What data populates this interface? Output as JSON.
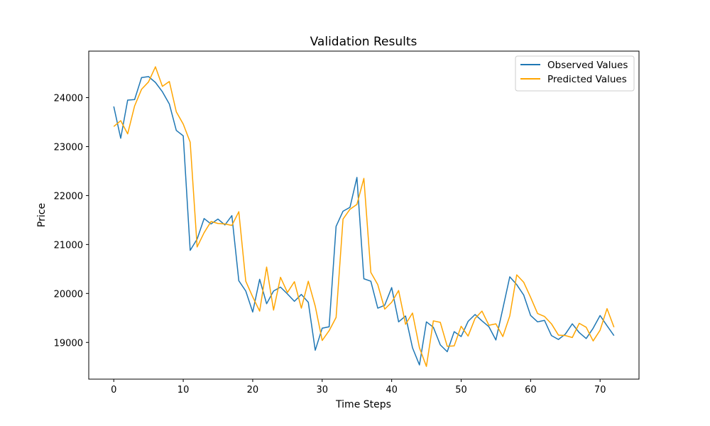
{
  "chart_data": {
    "type": "line",
    "title": "Validation Results",
    "xlabel": "Time Steps",
    "ylabel": "Price",
    "xlim": [
      -3.6,
      75.6
    ],
    "ylim": [
      18250,
      24950
    ],
    "xticks": [
      0,
      10,
      20,
      30,
      40,
      50,
      60,
      70
    ],
    "yticks": [
      19000,
      20000,
      21000,
      22000,
      23000,
      24000
    ],
    "grid": false,
    "legend_position": "top-right",
    "series": [
      {
        "name": "Observed Values",
        "color": "#1f77b4",
        "values": [
          23820,
          23170,
          23950,
          23960,
          24410,
          24430,
          24310,
          24120,
          23870,
          23330,
          23220,
          20880,
          21110,
          21530,
          21420,
          21520,
          21400,
          21590,
          20260,
          20050,
          19620,
          20290,
          19790,
          20050,
          20130,
          19990,
          19840,
          19980,
          19820,
          18840,
          19290,
          19320,
          21370,
          21680,
          21760,
          22370,
          20300,
          20250,
          19700,
          19760,
          20120,
          19420,
          19540,
          18890,
          18540,
          19420,
          19310,
          18950,
          18810,
          19220,
          19120,
          19430,
          19570,
          19440,
          19320,
          19050,
          19690,
          20340,
          20180,
          19970,
          19550,
          19420,
          19450,
          19140,
          19060,
          19170,
          19380,
          19200,
          19080,
          19290,
          19550,
          19340,
          19140
        ]
      },
      {
        "name": "Predicted Values",
        "color": "#ffa500",
        "values": [
          23410,
          23530,
          23260,
          23830,
          24170,
          24320,
          24630,
          24230,
          24330,
          23710,
          23460,
          23090,
          20950,
          21240,
          21470,
          21430,
          21420,
          21390,
          21670,
          20250,
          19930,
          19640,
          20540,
          19660,
          20330,
          20020,
          20240,
          19700,
          20250,
          19740,
          19040,
          19240,
          19510,
          21520,
          21720,
          21820,
          22350,
          20430,
          20180,
          19680,
          19820,
          20060,
          19370,
          19600,
          18890,
          18510,
          19440,
          19410,
          18920,
          18930,
          19330,
          19130,
          19490,
          19640,
          19350,
          19380,
          19120,
          19540,
          20380,
          20230,
          19920,
          19590,
          19530,
          19380,
          19150,
          19140,
          19100,
          19390,
          19310,
          19030,
          19250,
          19690,
          19310
        ]
      }
    ]
  }
}
